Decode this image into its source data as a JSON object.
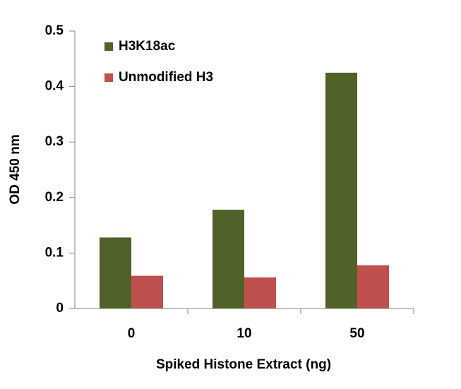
{
  "chart_data": {
    "type": "bar",
    "x_label": "Spiked Histone Extract (ng)",
    "y_label": "OD 450 nm",
    "categories": [
      "0",
      "10",
      "50"
    ],
    "series": [
      {
        "name": "H3K18ac",
        "color": "#4f6228",
        "values": [
          0.128,
          0.178,
          0.425
        ]
      },
      {
        "name": "Unmodified H3",
        "color": "#c0504d",
        "values": [
          0.059,
          0.056,
          0.078
        ]
      }
    ],
    "ylim": [
      0,
      0.5
    ],
    "yticks": [
      0,
      0.1,
      0.2,
      0.3,
      0.4,
      0.5
    ],
    "legend": "upper left"
  }
}
